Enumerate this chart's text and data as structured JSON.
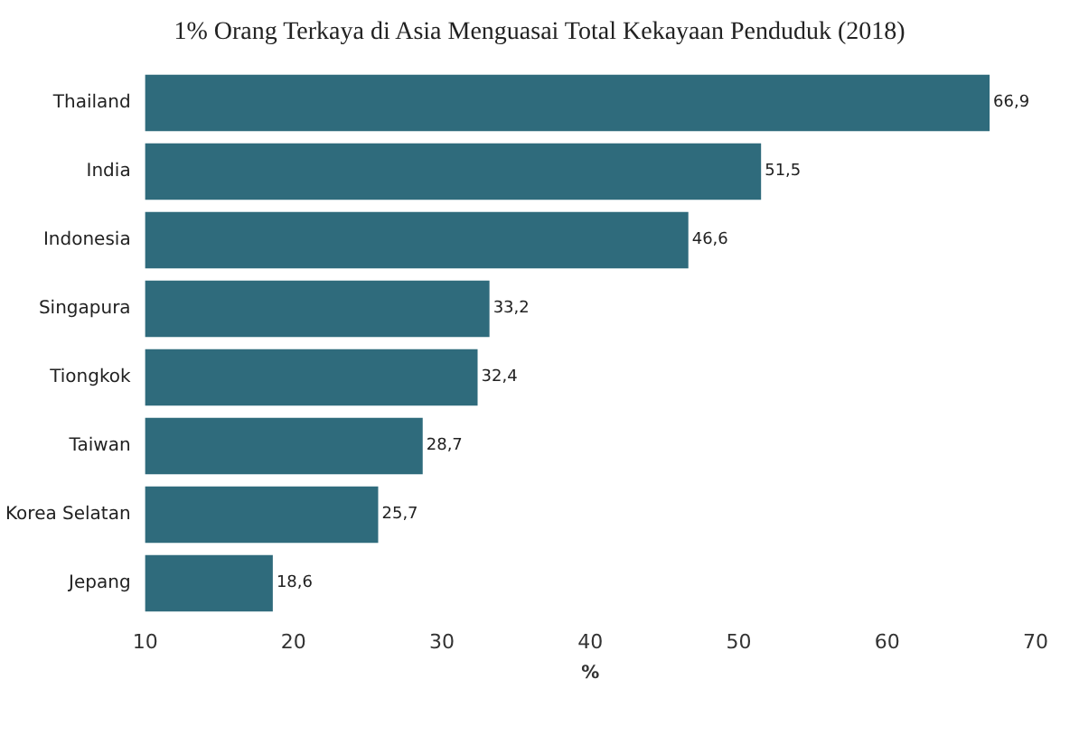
{
  "chart_data": {
    "type": "bar",
    "orientation": "horizontal",
    "title": "1% Orang Terkaya di Asia Menguasai Total Kekayaan Penduduk (2018)",
    "xlabel": "%",
    "categories": [
      "Thailand",
      "India",
      "Indonesia",
      "Singapura",
      "Tiongkok",
      "Taiwan",
      "Korea Selatan",
      "Jepang"
    ],
    "values": [
      66.9,
      51.5,
      46.6,
      33.2,
      32.4,
      28.7,
      25.7,
      18.6
    ],
    "value_labels": [
      "66,9",
      "51,5",
      "46,6",
      "33,2",
      "32,4",
      "28,7",
      "25,7",
      "18,6"
    ],
    "color": "#2f6b7c",
    "xlim": [
      10,
      70
    ],
    "xticks": [
      10,
      20,
      30,
      40,
      50,
      60,
      70
    ],
    "grid": false
  }
}
